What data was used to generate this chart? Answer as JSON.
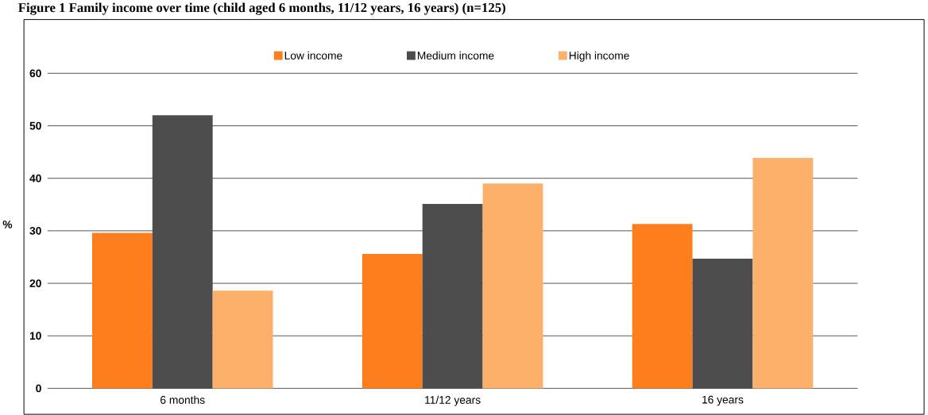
{
  "chart_data": {
    "type": "bar",
    "title": "Figure 1 Family income over time (child aged 6 months, 11/12 years, 16 years) (n=125)",
    "ylabel": "%",
    "categories": [
      "6 months",
      "11/12 years",
      "16 years"
    ],
    "series": [
      {
        "name": "Low income",
        "color": "#fd7e1c",
        "values": [
          29.6,
          25.6,
          31.3
        ]
      },
      {
        "name": "Medium income",
        "color": "#4d4d4d",
        "values": [
          52,
          35.1,
          24.7
        ]
      },
      {
        "name": "High income",
        "color": "#fdb069",
        "values": [
          18.6,
          39.0,
          43.9
        ]
      }
    ],
    "ylim": [
      0,
      60
    ],
    "yticks": [
      0,
      10,
      20,
      30,
      40,
      50,
      60
    ],
    "grid": "y",
    "legend": "top"
  }
}
